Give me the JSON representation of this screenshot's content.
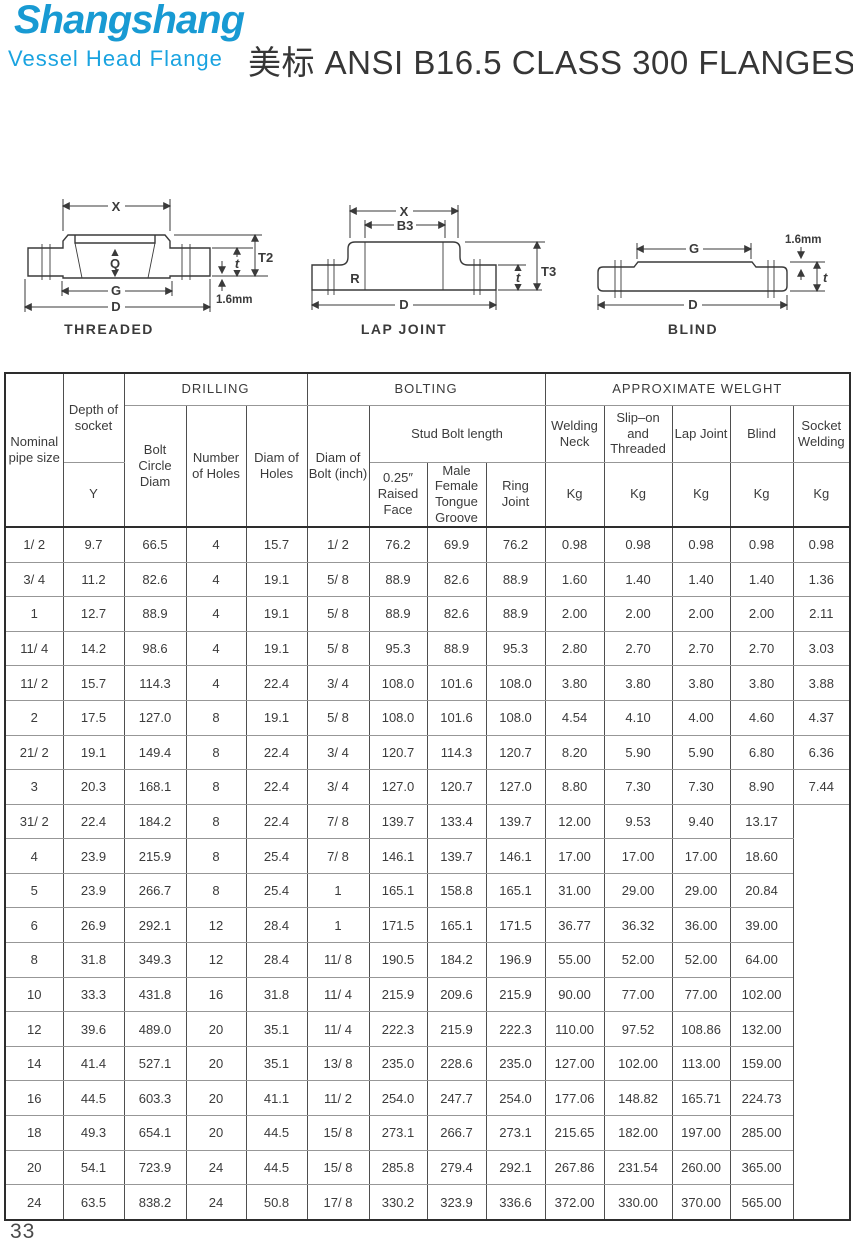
{
  "logo": {
    "name": "Shangshang",
    "subtitle": "Vessel Head Flange",
    "brand_color": "#189ad3"
  },
  "title": "美标 ANSI B16.5 CLASS 300 FLANGES",
  "page_number": "33",
  "diagrams": {
    "threaded": {
      "caption": "THREADED",
      "dim_x": "X",
      "dim_q": "Q",
      "dim_g": "G",
      "dim_d": "D",
      "dim_t": "t",
      "dim_t2": "T2",
      "note": "1.6mm"
    },
    "lap_joint": {
      "caption": "LAP JOINT",
      "dim_x": "X",
      "dim_b3": "B3",
      "dim_r": "R",
      "dim_d": "D",
      "dim_t": "t",
      "dim_t3": "T3"
    },
    "blind": {
      "caption": "BLIND",
      "dim_g": "G",
      "dim_d": "D",
      "dim_t": "t",
      "note": "1.6mm"
    }
  },
  "table": {
    "header": {
      "nominal_pipe_size": "Nominal pipe size",
      "depth_of_socket": "Depth of socket",
      "y": "Y",
      "drilling": "DRILLING",
      "bolt_circle_diam": "Bolt Circle Diam",
      "number_of_holes": "Number of Holes",
      "diam_of_holes": "Diam of Holes",
      "bolting": "BOLTING",
      "diam_of_bolt": "Diam of Bolt (inch)",
      "stud_bolt_length": "Stud Bolt length",
      "raised_face": "0.25″ Raised Face",
      "male_female_tongue_groove": "Male Female Tongue Groove",
      "ring_joint": "Ring Joint",
      "approx_weight": "APPROXIMATE WELGHT",
      "welding_neck": "Welding Neck",
      "slip_on_threaded": "Slip–on and Threaded",
      "lap_joint": "Lap Joint",
      "blind": "Blind",
      "socket_welding": "Socket Welding",
      "kg": "Kg"
    },
    "merge": {
      "row": 8,
      "col": 13,
      "rowspan": 12
    },
    "rows": [
      [
        "1/ 2",
        "9.7",
        "66.5",
        "4",
        "15.7",
        "1/ 2",
        "76.2",
        "69.9",
        "76.2",
        "0.98",
        "0.98",
        "0.98",
        "0.98",
        "0.98"
      ],
      [
        "3/ 4",
        "11.2",
        "82.6",
        "4",
        "19.1",
        "5/ 8",
        "88.9",
        "82.6",
        "88.9",
        "1.60",
        "1.40",
        "1.40",
        "1.40",
        "1.36"
      ],
      [
        "1",
        "12.7",
        "88.9",
        "4",
        "19.1",
        "5/ 8",
        "88.9",
        "82.6",
        "88.9",
        "2.00",
        "2.00",
        "2.00",
        "2.00",
        "2.11"
      ],
      [
        "11/ 4",
        "14.2",
        "98.6",
        "4",
        "19.1",
        "5/ 8",
        "95.3",
        "88.9",
        "95.3",
        "2.80",
        "2.70",
        "2.70",
        "2.70",
        "3.03"
      ],
      [
        "11/ 2",
        "15.7",
        "114.3",
        "4",
        "22.4",
        "3/ 4",
        "108.0",
        "101.6",
        "108.0",
        "3.80",
        "3.80",
        "3.80",
        "3.80",
        "3.88"
      ],
      [
        "2",
        "17.5",
        "127.0",
        "8",
        "19.1",
        "5/ 8",
        "108.0",
        "101.6",
        "108.0",
        "4.54",
        "4.10",
        "4.00",
        "4.60",
        "4.37"
      ],
      [
        "21/ 2",
        "19.1",
        "149.4",
        "8",
        "22.4",
        "3/ 4",
        "120.7",
        "114.3",
        "120.7",
        "8.20",
        "5.90",
        "5.90",
        "6.80",
        "6.36"
      ],
      [
        "3",
        "20.3",
        "168.1",
        "8",
        "22.4",
        "3/ 4",
        "127.0",
        "120.7",
        "127.0",
        "8.80",
        "7.30",
        "7.30",
        "8.90",
        "7.44"
      ],
      [
        "31/ 2",
        "22.4",
        "184.2",
        "8",
        "22.4",
        "7/ 8",
        "139.7",
        "133.4",
        "139.7",
        "12.00",
        "9.53",
        "9.40",
        "13.17",
        ""
      ],
      [
        "4",
        "23.9",
        "215.9",
        "8",
        "25.4",
        "7/ 8",
        "146.1",
        "139.7",
        "146.1",
        "17.00",
        "17.00",
        "17.00",
        "18.60",
        ""
      ],
      [
        "5",
        "23.9",
        "266.7",
        "8",
        "25.4",
        "1",
        "165.1",
        "158.8",
        "165.1",
        "31.00",
        "29.00",
        "29.00",
        "20.84",
        ""
      ],
      [
        "6",
        "26.9",
        "292.1",
        "12",
        "28.4",
        "1",
        "171.5",
        "165.1",
        "171.5",
        "36.77",
        "36.32",
        "36.00",
        "39.00",
        ""
      ],
      [
        "8",
        "31.8",
        "349.3",
        "12",
        "28.4",
        "11/ 8",
        "190.5",
        "184.2",
        "196.9",
        "55.00",
        "52.00",
        "52.00",
        "64.00",
        ""
      ],
      [
        "10",
        "33.3",
        "431.8",
        "16",
        "31.8",
        "11/ 4",
        "215.9",
        "209.6",
        "215.9",
        "90.00",
        "77.00",
        "77.00",
        "102.00",
        ""
      ],
      [
        "12",
        "39.6",
        "489.0",
        "20",
        "35.1",
        "11/ 4",
        "222.3",
        "215.9",
        "222.3",
        "110.00",
        "97.52",
        "108.86",
        "132.00",
        ""
      ],
      [
        "14",
        "41.4",
        "527.1",
        "20",
        "35.1",
        "13/ 8",
        "235.0",
        "228.6",
        "235.0",
        "127.00",
        "102.00",
        "113.00",
        "159.00",
        ""
      ],
      [
        "16",
        "44.5",
        "603.3",
        "20",
        "41.1",
        "11/ 2",
        "254.0",
        "247.7",
        "254.0",
        "177.06",
        "148.82",
        "165.71",
        "224.73",
        ""
      ],
      [
        "18",
        "49.3",
        "654.1",
        "20",
        "44.5",
        "15/ 8",
        "273.1",
        "266.7",
        "273.1",
        "215.65",
        "182.00",
        "197.00",
        "285.00",
        ""
      ],
      [
        "20",
        "54.1",
        "723.9",
        "24",
        "44.5",
        "15/ 8",
        "285.8",
        "279.4",
        "292.1",
        "267.86",
        "231.54",
        "260.00",
        "365.00",
        ""
      ],
      [
        "24",
        "63.5",
        "838.2",
        "24",
        "50.8",
        "17/ 8",
        "330.2",
        "323.9",
        "336.6",
        "372.00",
        "330.00",
        "370.00",
        "565.00",
        ""
      ]
    ]
  }
}
